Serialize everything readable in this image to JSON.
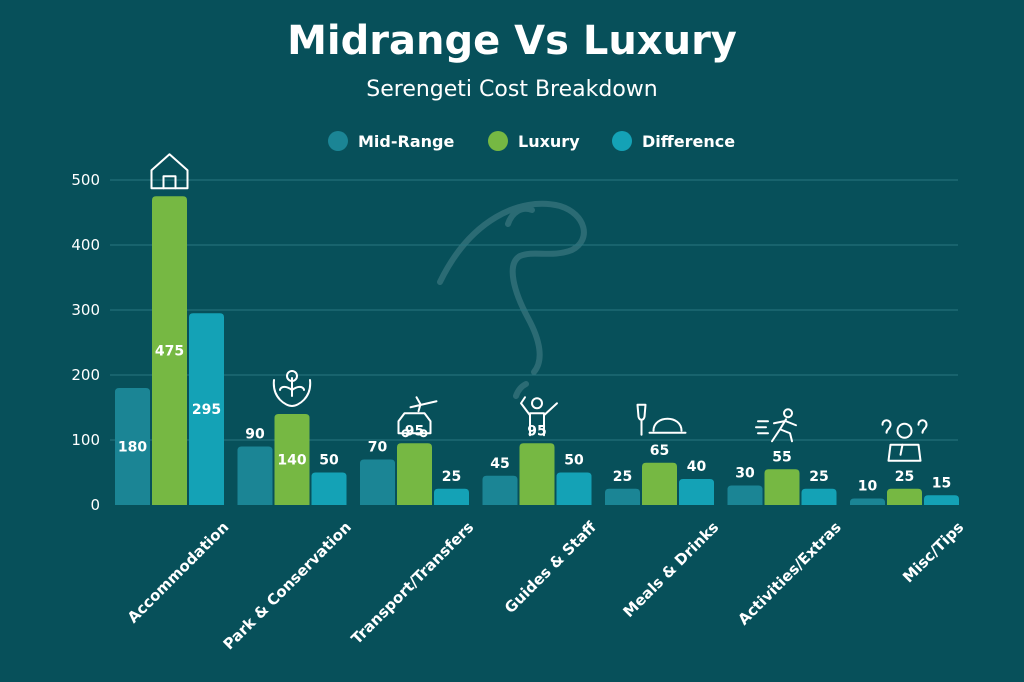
{
  "chart_data": {
    "type": "bar",
    "title": "Midrange Vs Luxury",
    "subtitle": "Serengeti Cost Breakdown",
    "categories": [
      "Accommodation",
      "Park & Conservation",
      "Transport/Transfers",
      "Guides & Staff",
      "Meals & Drinks",
      "Activities/Extras",
      "Misc/Tips"
    ],
    "series": [
      {
        "name": "Mid-Range",
        "color": "#1b8595",
        "values": [
          180,
          90,
          70,
          45,
          25,
          30,
          10
        ]
      },
      {
        "name": "Luxury",
        "color": "#76b843",
        "values": [
          475,
          140,
          95,
          95,
          65,
          55,
          25
        ]
      },
      {
        "name": "Difference",
        "color": "#14a2b6",
        "values": [
          295,
          50,
          25,
          50,
          40,
          25,
          15
        ]
      }
    ],
    "ylim": [
      0,
      500
    ],
    "yticks": [
      0,
      100,
      200,
      300,
      400,
      500
    ],
    "grid": true,
    "legend": "top-center",
    "category_icons": [
      "house-icon",
      "hands-plant-icon",
      "taxi-plane-icon",
      "guide-person-icon",
      "glass-cloche-icon",
      "running-person-icon",
      "thinking-person-icon"
    ]
  }
}
